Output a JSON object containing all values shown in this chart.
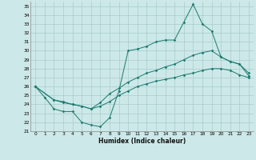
{
  "xlabel": "Humidex (Indice chaleur)",
  "bg_color": "#cce8e8",
  "grid_color": "#aacccc",
  "line_color": "#1a7a6e",
  "xlim": [
    -0.5,
    23.5
  ],
  "ylim": [
    21,
    35.5
  ],
  "xticks": [
    0,
    1,
    2,
    3,
    4,
    5,
    6,
    7,
    8,
    9,
    10,
    11,
    12,
    13,
    14,
    15,
    16,
    17,
    18,
    19,
    20,
    21,
    22,
    23
  ],
  "yticks": [
    21,
    22,
    23,
    24,
    25,
    26,
    27,
    28,
    29,
    30,
    31,
    32,
    33,
    34,
    35
  ],
  "line1_x": [
    0,
    1,
    2,
    3,
    4,
    5,
    6,
    7,
    8,
    9,
    10,
    11,
    12,
    13,
    14,
    15,
    16,
    17,
    18,
    19,
    20,
    21,
    22,
    23
  ],
  "line1_y": [
    26.0,
    24.8,
    23.5,
    23.2,
    23.2,
    22.0,
    21.7,
    21.5,
    22.5,
    25.5,
    30.0,
    30.2,
    30.5,
    31.0,
    31.2,
    31.2,
    33.2,
    35.2,
    33.0,
    32.2,
    29.3,
    28.8,
    28.5,
    27.2
  ],
  "line2_x": [
    0,
    2,
    3,
    4,
    5,
    6,
    7,
    8,
    9,
    10,
    11,
    12,
    13,
    14,
    15,
    16,
    17,
    18,
    19,
    20,
    21,
    22,
    23
  ],
  "line2_y": [
    26.0,
    24.5,
    24.3,
    24.0,
    23.8,
    23.5,
    24.2,
    25.2,
    25.8,
    26.5,
    27.0,
    27.5,
    27.8,
    28.2,
    28.5,
    29.0,
    29.5,
    29.8,
    30.0,
    29.3,
    28.8,
    28.5,
    27.5
  ],
  "line3_x": [
    0,
    2,
    3,
    4,
    5,
    6,
    7,
    8,
    9,
    10,
    11,
    12,
    13,
    14,
    15,
    16,
    17,
    18,
    19,
    20,
    21,
    22,
    23
  ],
  "line3_y": [
    26.0,
    24.5,
    24.2,
    24.0,
    23.8,
    23.5,
    23.8,
    24.3,
    25.0,
    25.5,
    26.0,
    26.3,
    26.6,
    26.8,
    27.0,
    27.3,
    27.5,
    27.8,
    28.0,
    28.0,
    27.8,
    27.3,
    27.0
  ]
}
